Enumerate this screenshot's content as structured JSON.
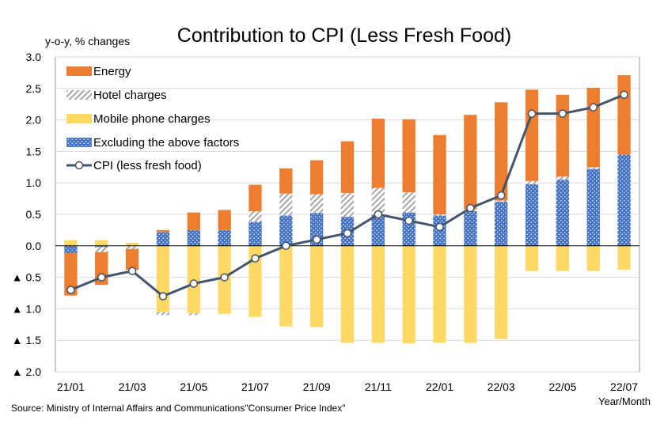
{
  "chart_data": {
    "type": "bar",
    "title": "Contribution to CPI (Less Fresh Food)",
    "ylabel": "y-o-y, % changes",
    "xlabel": "Year/Month",
    "source": "Source: Ministry of Internal Affairs and Communications\"Consumer Price Index\"",
    "ylim": [
      -2.0,
      3.0
    ],
    "y_ticks": [
      {
        "value": 3.0,
        "label": "3.0"
      },
      {
        "value": 2.5,
        "label": "2.5"
      },
      {
        "value": 2.0,
        "label": "2.0"
      },
      {
        "value": 1.5,
        "label": "1.5"
      },
      {
        "value": 1.0,
        "label": "1.0"
      },
      {
        "value": 0.5,
        "label": "0.5"
      },
      {
        "value": 0.0,
        "label": "0.0"
      },
      {
        "value": -0.5,
        "label": "▲ 0.5"
      },
      {
        "value": -1.0,
        "label": "▲ 1.0"
      },
      {
        "value": -1.5,
        "label": "▲ 1.5"
      },
      {
        "value": -2.0,
        "label": "▲ 2.0"
      }
    ],
    "categories": [
      "21/01",
      "21/02",
      "21/03",
      "21/04",
      "21/05",
      "21/06",
      "21/07",
      "21/08",
      "21/09",
      "21/10",
      "21/11",
      "21/12",
      "22/01",
      "22/02",
      "22/03",
      "22/04",
      "22/05",
      "22/06",
      "22/07"
    ],
    "x_tick_labels": [
      {
        "index": 0,
        "label": "21/01"
      },
      {
        "index": 2,
        "label": "21/03"
      },
      {
        "index": 4,
        "label": "21/05"
      },
      {
        "index": 6,
        "label": "21/07"
      },
      {
        "index": 8,
        "label": "21/09"
      },
      {
        "index": 10,
        "label": "21/11"
      },
      {
        "index": 12,
        "label": "22/01"
      },
      {
        "index": 14,
        "label": "22/03"
      },
      {
        "index": 16,
        "label": "22/05"
      },
      {
        "index": 18,
        "label": "22/07"
      }
    ],
    "legend_position": "top-left",
    "series": [
      {
        "name": "Excluding the above factors",
        "kind": "bar",
        "color": "#4472C4",
        "pattern": "dots",
        "values": [
          -0.12,
          -0.02,
          0.0,
          0.22,
          0.25,
          0.25,
          0.38,
          0.48,
          0.52,
          0.46,
          0.5,
          0.53,
          0.48,
          0.55,
          0.7,
          0.98,
          1.05,
          1.22,
          1.45
        ]
      },
      {
        "name": "Mobile phone charges",
        "kind": "bar",
        "color": "#FFD966",
        "pattern": "solid",
        "values": [
          0.09,
          0.09,
          0.05,
          -1.05,
          -1.07,
          -1.08,
          -1.13,
          -1.28,
          -1.29,
          -1.54,
          -1.54,
          -1.55,
          -1.54,
          -1.54,
          -1.48,
          -0.4,
          -0.4,
          -0.4,
          -0.38
        ]
      },
      {
        "name": "Hotel charges",
        "kind": "bar",
        "color": "#A6A6A6",
        "pattern": "hatch",
        "values": [
          0.0,
          -0.08,
          -0.05,
          -0.05,
          -0.03,
          0.0,
          0.17,
          0.35,
          0.3,
          0.38,
          0.42,
          0.32,
          0.02,
          0.03,
          0.02,
          0.05,
          0.05,
          0.03,
          0.0
        ]
      },
      {
        "name": "Energy",
        "kind": "bar",
        "color": "#ED7D31",
        "pattern": "solid",
        "values": [
          -0.67,
          -0.52,
          -0.33,
          0.03,
          0.28,
          0.32,
          0.42,
          0.4,
          0.54,
          0.82,
          1.1,
          1.16,
          1.26,
          1.5,
          1.56,
          1.45,
          1.3,
          1.26,
          1.26
        ]
      },
      {
        "name": "CPI (less fresh food)",
        "kind": "line",
        "color": "#44546A",
        "values": [
          -0.7,
          -0.5,
          -0.4,
          -0.8,
          -0.6,
          -0.5,
          -0.2,
          0.0,
          0.1,
          0.2,
          0.5,
          0.4,
          0.3,
          0.6,
          0.8,
          2.1,
          2.1,
          2.2,
          2.4
        ]
      }
    ],
    "legend_order": [
      "Energy",
      "Hotel charges",
      "Mobile phone charges",
      "Excluding the above factors",
      "CPI (less fresh food)"
    ]
  }
}
